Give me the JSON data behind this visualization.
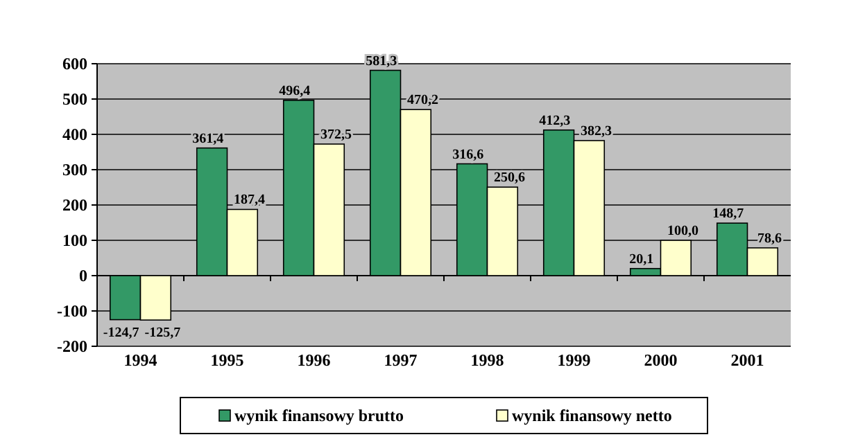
{
  "chart_data": {
    "type": "bar",
    "categories": [
      "1994",
      "1995",
      "1996",
      "1997",
      "1998",
      "1999",
      "2000",
      "2001"
    ],
    "series": [
      {
        "name": "wynik finansowy brutto",
        "color": "#339966",
        "values": [
          -124.7,
          361.4,
          496.4,
          581.3,
          316.6,
          412.3,
          20.1,
          148.7
        ],
        "value_labels": [
          "-124,7",
          "361,4",
          "496,4",
          "581,3",
          "316,6",
          "412,3",
          "20,1",
          "148,7"
        ]
      },
      {
        "name": "wynik finansowy netto",
        "color": "#ffffcc",
        "values": [
          -125.7,
          187.4,
          372.5,
          470.2,
          250.6,
          382.3,
          100.0,
          78.6
        ],
        "value_labels": [
          "-125,7",
          "187,4",
          "372,5",
          "470,2",
          "250,6",
          "382,3",
          "100,0",
          "78,6"
        ]
      }
    ],
    "ylim": [
      -200,
      600
    ],
    "yticks": [
      -200,
      -100,
      0,
      100,
      200,
      300,
      400,
      500,
      600
    ],
    "grid": "y",
    "legend": "bottom"
  }
}
